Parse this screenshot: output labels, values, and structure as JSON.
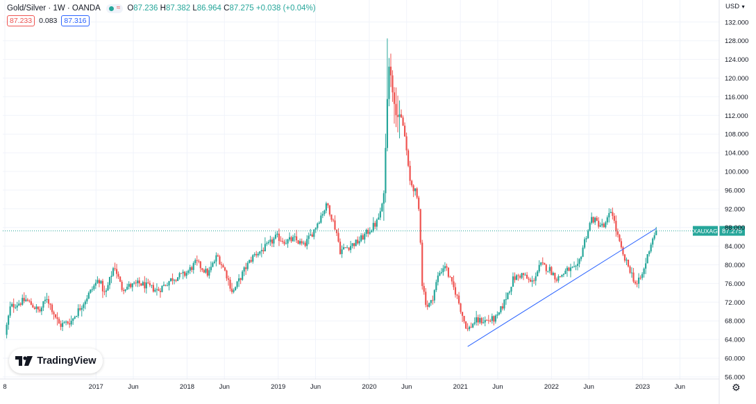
{
  "header": {
    "symbol": "Gold/Silver · 1W · OANDA",
    "open_label": "O",
    "open": "87.236",
    "high_label": "H",
    "high": "87.382",
    "low_label": "L",
    "low": "86.964",
    "close_label": "C",
    "close": "87.275",
    "change": "+0.038 (+0.04%)"
  },
  "indicator": {
    "value_a": "87.233",
    "value_b": "0.083",
    "value_c": "87.316"
  },
  "currency_label": "USD",
  "branding": {
    "logo_text": "TradingView"
  },
  "colors": {
    "up": "#26a69a",
    "down": "#ef5350",
    "trendline": "#2962ff",
    "grid": "#f0f3fa",
    "axis_text": "#131722",
    "price_tag_bg": "#26a69a"
  },
  "chart_data": {
    "type": "candlestick",
    "title": "Gold/Silver · 1W · OANDA",
    "symbol_tag": "XAUXAG",
    "last_price": 87.275,
    "last_price_label": "87.275",
    "ylim": [
      55,
      135
    ],
    "y_ticks": [
      56,
      60,
      64,
      68,
      72,
      76,
      80,
      84,
      88,
      92,
      96,
      100,
      104,
      108,
      112,
      116,
      120,
      124,
      128,
      132
    ],
    "y_tick_labels": [
      "56.000",
      "60.000",
      "64.000",
      "68.000",
      "72.000",
      "76.000",
      "80.000",
      "84.000",
      "88.000",
      "92.000",
      "96.000",
      "100.000",
      "104.000",
      "108.000",
      "112.000",
      "116.000",
      "120.000",
      "124.000",
      "128.000",
      "132.000"
    ],
    "x_range": [
      2016.02,
      2023.75
    ],
    "x_ticks": [
      {
        "t": 2016.0,
        "label": "8"
      },
      {
        "t": 2017.0,
        "label": "2017"
      },
      {
        "t": 2017.41,
        "label": "Jun"
      },
      {
        "t": 2018.0,
        "label": "2018"
      },
      {
        "t": 2018.41,
        "label": "Jun"
      },
      {
        "t": 2019.0,
        "label": "2019"
      },
      {
        "t": 2019.41,
        "label": "Jun"
      },
      {
        "t": 2020.0,
        "label": "2020"
      },
      {
        "t": 2020.41,
        "label": "Jun"
      },
      {
        "t": 2021.0,
        "label": "2021"
      },
      {
        "t": 2021.41,
        "label": "Jun"
      },
      {
        "t": 2022.0,
        "label": "2022"
      },
      {
        "t": 2022.41,
        "label": "Jun"
      },
      {
        "t": 2023.0,
        "label": "2023"
      },
      {
        "t": 2023.41,
        "label": "Jun"
      }
    ],
    "trendline": {
      "t1": 2021.08,
      "v1": 62.5,
      "t2": 2023.15,
      "v2": 87.8
    },
    "anchors": [
      [
        2016.02,
        65
      ],
      [
        2016.08,
        71
      ],
      [
        2016.25,
        72.5
      ],
      [
        2016.4,
        70
      ],
      [
        2016.48,
        73
      ],
      [
        2016.62,
        67
      ],
      [
        2016.75,
        68
      ],
      [
        2016.85,
        71
      ],
      [
        2016.95,
        74
      ],
      [
        2017.05,
        77
      ],
      [
        2017.12,
        73.5
      ],
      [
        2017.22,
        80
      ],
      [
        2017.3,
        75
      ],
      [
        2017.5,
        76
      ],
      [
        2017.7,
        74.5
      ],
      [
        2017.85,
        77
      ],
      [
        2018.0,
        78
      ],
      [
        2018.12,
        80.5
      ],
      [
        2018.25,
        78
      ],
      [
        2018.35,
        82
      ],
      [
        2018.45,
        78
      ],
      [
        2018.52,
        74
      ],
      [
        2018.65,
        79
      ],
      [
        2018.75,
        82
      ],
      [
        2018.9,
        84
      ],
      [
        2019.0,
        86
      ],
      [
        2019.1,
        85
      ],
      [
        2019.2,
        85.5
      ],
      [
        2019.3,
        84
      ],
      [
        2019.4,
        87
      ],
      [
        2019.5,
        91
      ],
      [
        2019.56,
        93
      ],
      [
        2019.66,
        87
      ],
      [
        2019.7,
        83
      ],
      [
        2019.8,
        84
      ],
      [
        2019.9,
        85
      ],
      [
        2020.0,
        87
      ],
      [
        2020.1,
        89
      ],
      [
        2020.17,
        93
      ],
      [
        2020.19,
        100
      ],
      [
        2020.21,
        112
      ],
      [
        2020.23,
        124
      ],
      [
        2020.27,
        118
      ],
      [
        2020.32,
        112
      ],
      [
        2020.38,
        111
      ],
      [
        2020.42,
        106
      ],
      [
        2020.46,
        98
      ],
      [
        2020.52,
        96
      ],
      [
        2020.57,
        91
      ],
      [
        2020.6,
        76
      ],
      [
        2020.65,
        71
      ],
      [
        2020.7,
        72
      ],
      [
        2020.78,
        78
      ],
      [
        2020.85,
        80
      ],
      [
        2020.92,
        76
      ],
      [
        2020.97,
        74
      ],
      [
        2021.06,
        68
      ],
      [
        2021.1,
        66
      ],
      [
        2021.18,
        68
      ],
      [
        2021.3,
        68
      ],
      [
        2021.42,
        68.5
      ],
      [
        2021.5,
        72
      ],
      [
        2021.6,
        77
      ],
      [
        2021.7,
        78
      ],
      [
        2021.8,
        76
      ],
      [
        2021.9,
        80
      ],
      [
        2022.0,
        79
      ],
      [
        2022.08,
        77
      ],
      [
        2022.2,
        79
      ],
      [
        2022.3,
        79
      ],
      [
        2022.38,
        85
      ],
      [
        2022.46,
        90
      ],
      [
        2022.52,
        89
      ],
      [
        2022.6,
        88
      ],
      [
        2022.68,
        92
      ],
      [
        2022.72,
        88
      ],
      [
        2022.8,
        82
      ],
      [
        2022.88,
        79
      ],
      [
        2022.95,
        75.5
      ],
      [
        2023.02,
        78
      ],
      [
        2023.1,
        84
      ],
      [
        2023.16,
        87.3
      ]
    ]
  }
}
